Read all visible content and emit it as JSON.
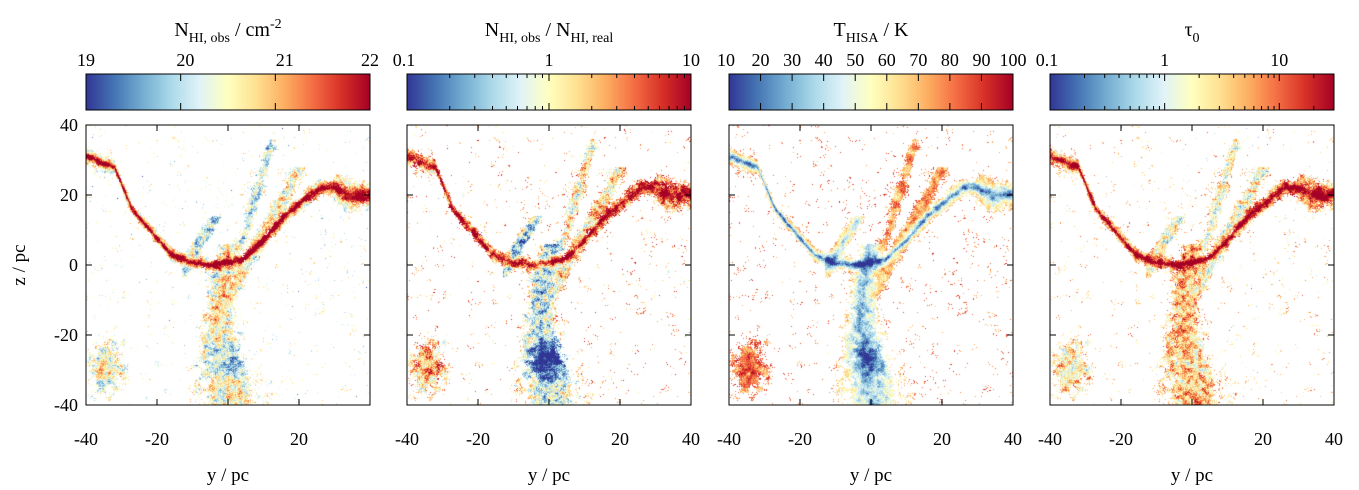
{
  "chart_data": [
    {
      "type": "heatmap",
      "panel": 1,
      "colorbar": {
        "title_main": "N",
        "title_sub": "HI, obs",
        "title_unit": " / cm",
        "title_sup": "-2",
        "scale": "linear",
        "range": [
          19,
          22
        ],
        "ticks": [
          19,
          20,
          21,
          22
        ],
        "tick_labels": [
          "19",
          "20",
          "21",
          "22"
        ],
        "label_positions": [
          19,
          20,
          21,
          22
        ]
      },
      "xlabel": "y / pc",
      "ylabel": "z / pc",
      "xlim": [
        -40,
        40
      ],
      "ylim": [
        -40,
        40
      ],
      "x_ticks": [
        -40,
        -20,
        0,
        20
      ],
      "x_tick_labels": [
        "-40",
        "-20",
        "0",
        "20"
      ],
      "y_ticks": [
        -40,
        -20,
        0,
        20,
        40
      ],
      "y_tick_labels": [
        "-40",
        "-20",
        "0",
        "20",
        "40"
      ],
      "field": "column-density"
    },
    {
      "type": "heatmap",
      "panel": 2,
      "colorbar": {
        "title_main": "N",
        "title_sub": "HI, obs",
        "title_mid": " / N",
        "title_sub2": "HI, real",
        "scale": "log",
        "range": [
          0.1,
          10
        ],
        "ticks": [
          0.1,
          1,
          10
        ],
        "tick_labels": [
          "0.1",
          "1",
          "10"
        ]
      },
      "xlabel": "y / pc",
      "xlim": [
        -40,
        40
      ],
      "ylim": [
        -40,
        40
      ],
      "x_ticks": [
        -40,
        -20,
        0,
        20,
        40
      ],
      "x_tick_labels": [
        "-40",
        "-20",
        "0",
        "20",
        "40"
      ],
      "field": "ratio"
    },
    {
      "type": "heatmap",
      "panel": 3,
      "colorbar": {
        "title_main": "T",
        "title_sub": "HISA",
        "title_unit": " / K",
        "scale": "linear",
        "range": [
          10,
          100
        ],
        "ticks": [
          10,
          20,
          30,
          40,
          50,
          60,
          70,
          80,
          90,
          100
        ],
        "tick_labels": [
          "10",
          "20",
          "30",
          "40",
          "50",
          "60",
          "70",
          "80",
          "90",
          "100"
        ]
      },
      "xlabel": "y / pc",
      "xlim": [
        -40,
        40
      ],
      "ylim": [
        -40,
        40
      ],
      "x_ticks": [
        -40,
        -20,
        0,
        20,
        40
      ],
      "x_tick_labels": [
        "-40",
        "-20",
        "0",
        "20",
        "40"
      ],
      "field": "temperature"
    },
    {
      "type": "heatmap",
      "panel": 4,
      "colorbar": {
        "title_main": "τ",
        "title_sub": "0",
        "scale": "log",
        "range": [
          0.1,
          30
        ],
        "ticks": [
          0.1,
          1,
          10
        ],
        "tick_labels": [
          "0.1",
          "1",
          "10"
        ]
      },
      "xlabel": "y / pc",
      "xlim": [
        -40,
        40
      ],
      "ylim": [
        -40,
        40
      ],
      "x_ticks": [
        -40,
        -20,
        0,
        20,
        40
      ],
      "x_tick_labels": [
        "-40",
        "-20",
        "0",
        "20",
        "40"
      ],
      "field": "optical-depth"
    }
  ],
  "colors": {
    "colormap": [
      "#313695",
      "#4575b4",
      "#74add1",
      "#abd9e9",
      "#e0f3f8",
      "#ffffbf",
      "#fee090",
      "#fdae61",
      "#f46d43",
      "#d73027",
      "#a50026"
    ],
    "axis": "#000000",
    "background": "#ffffff"
  }
}
